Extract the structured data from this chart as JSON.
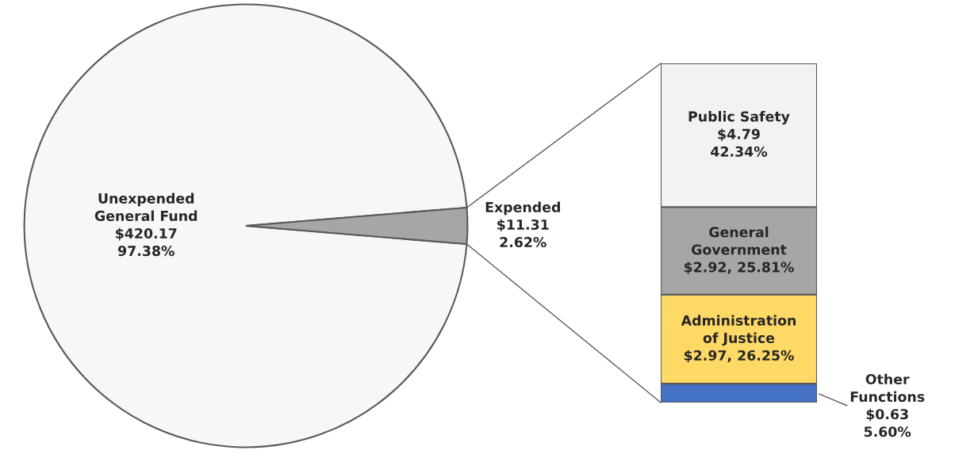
{
  "chart_data": [
    {
      "type": "pie",
      "categories": [
        "Unexpended\nGeneral Fund",
        "Expended"
      ],
      "values": [
        420.17,
        11.31
      ],
      "colors": [
        "#f7f7f7",
        "#a6a6a6"
      ],
      "value_labels": [
        "$420.17\n97.38%",
        "$11.31\n2.62%"
      ]
    },
    {
      "type": "bar",
      "stacked": true,
      "categories": [
        null
      ],
      "series": [
        {
          "name": "Other\nFunctions",
          "color": "#4472c4",
          "values": [
            0.63
          ],
          "value_labels": [
            "$0.63\n5.60%"
          ]
        },
        {
          "name": "Administration\nof Justice",
          "color": "#ffd966",
          "values": [
            2.97
          ],
          "value_labels": [
            "$2.97, 26.25%"
          ]
        },
        {
          "name": "General\nGovernment",
          "color": "#a6a6a6",
          "values": [
            2.92
          ],
          "value_labels": [
            "$2.92, 25.81%"
          ]
        },
        {
          "name": "Public Safety",
          "color": "#f2f2f2",
          "values": [
            4.79
          ],
          "value_labels": [
            "$4.79\n42.34%"
          ]
        }
      ]
    }
  ]
}
